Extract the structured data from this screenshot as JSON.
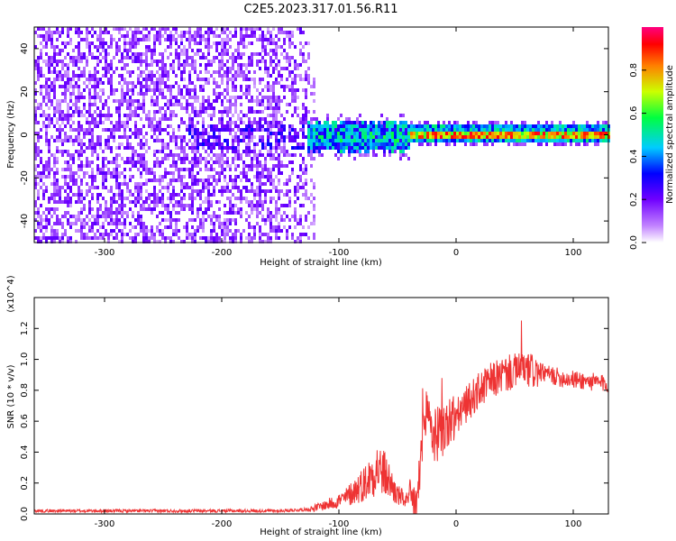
{
  "figure_title": "C2E5.2023.317.01.56.R11",
  "chart_data": [
    {
      "type": "heatmap",
      "name": "spectrogram",
      "xlabel": "Height of straight line (km)",
      "ylabel": "Frequency (Hz)",
      "xlim": [
        -360,
        130
      ],
      "ylim": [
        -50,
        50
      ],
      "xticks": [
        -300,
        -200,
        -100,
        0,
        100
      ],
      "yticks": [
        -40,
        -20,
        0,
        20,
        40
      ],
      "colorbar": {
        "label": "Normalized spectral amplitude",
        "range": [
          0.0,
          1.0
        ],
        "ticks": [
          0.0,
          0.2,
          0.4,
          0.6,
          0.8
        ],
        "colors": [
          "#ffffff",
          "#8000ff",
          "#0000ff",
          "#00ffff",
          "#00ff00",
          "#ffff00",
          "#ff0000",
          "#ff0080"
        ]
      },
      "regions": [
        {
          "x_range": [
            -360,
            -125
          ],
          "freq_range": [
            -50,
            50
          ],
          "description_level": 0.15
        },
        {
          "x_range": [
            -125,
            -40
          ],
          "freq_center": 0,
          "freq_halfwidth": 6,
          "level": 0.45
        },
        {
          "x_range": [
            -40,
            130
          ],
          "freq_center": 1,
          "freq_halfwidth": 3,
          "level": 0.8
        }
      ]
    },
    {
      "type": "line",
      "name": "snr",
      "xlabel": "Height of straight line (km)",
      "ylabel": "SNR (10 * v/v)",
      "multiplier_label": "(x10^4)",
      "xlim": [
        -360,
        130
      ],
      "ylim": [
        0,
        1.4
      ],
      "xticks": [
        -300,
        -200,
        -100,
        0,
        100
      ],
      "yticks": [
        0.0,
        0.2,
        0.4,
        0.6,
        0.8,
        1.0,
        1.2
      ],
      "line_color": "#ee3333",
      "series": [
        {
          "name": "SNR",
          "x": [
            -360,
            -300,
            -250,
            -200,
            -150,
            -125,
            -110,
            -95,
            -85,
            -75,
            -68,
            -60,
            -50,
            -40,
            -33,
            -30,
            -27,
            -25,
            -22,
            -20,
            -15,
            -10,
            -5,
            0,
            10,
            20,
            30,
            40,
            50,
            60,
            70,
            80,
            90,
            100,
            110,
            120,
            130
          ],
          "y": [
            0.02,
            0.02,
            0.02,
            0.02,
            0.02,
            0.03,
            0.06,
            0.1,
            0.16,
            0.22,
            0.3,
            0.25,
            0.12,
            0.08,
            0.06,
            0.38,
            0.55,
            0.7,
            0.62,
            0.5,
            0.52,
            0.55,
            0.6,
            0.62,
            0.72,
            0.8,
            0.86,
            0.9,
            0.92,
            0.93,
            0.92,
            0.9,
            0.88,
            0.87,
            0.86,
            0.85,
            0.84
          ]
        }
      ]
    }
  ]
}
